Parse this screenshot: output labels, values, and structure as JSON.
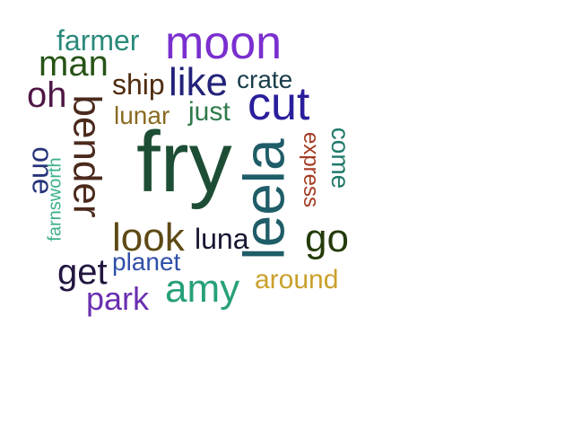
{
  "words": [
    {
      "text": "fry",
      "color": "#1d4e35"
    },
    {
      "text": "leela",
      "color": "#1f5d68"
    },
    {
      "text": "moon",
      "color": "#7a2fcf"
    },
    {
      "text": "bender",
      "color": "#4b2a1c"
    },
    {
      "text": "cut",
      "color": "#2a1e9c"
    },
    {
      "text": "like",
      "color": "#23237a"
    },
    {
      "text": "amy",
      "color": "#27a07a"
    },
    {
      "text": "look",
      "color": "#5d4a14"
    },
    {
      "text": "go",
      "color": "#243b0a"
    },
    {
      "text": "man",
      "color": "#265417"
    },
    {
      "text": "oh",
      "color": "#4f1746"
    },
    {
      "text": "farmer",
      "color": "#2b8a7a"
    },
    {
      "text": "one",
      "color": "#26337a"
    },
    {
      "text": "ship",
      "color": "#4f2c0f"
    },
    {
      "text": "crate",
      "color": "#183c4a"
    },
    {
      "text": "just",
      "color": "#2f7a4a"
    },
    {
      "text": "lunar",
      "color": "#8a6a22"
    },
    {
      "text": "come",
      "color": "#1f7a6a"
    },
    {
      "text": "express",
      "color": "#a53a22"
    },
    {
      "text": "farnsworth",
      "color": "#3cb08c"
    },
    {
      "text": "luna",
      "color": "#161632"
    },
    {
      "text": "get",
      "color": "#221640"
    },
    {
      "text": "planet",
      "color": "#2f4fa8"
    },
    {
      "text": "park",
      "color": "#6a2fb0"
    },
    {
      "text": "around",
      "color": "#c9a12c"
    }
  ]
}
